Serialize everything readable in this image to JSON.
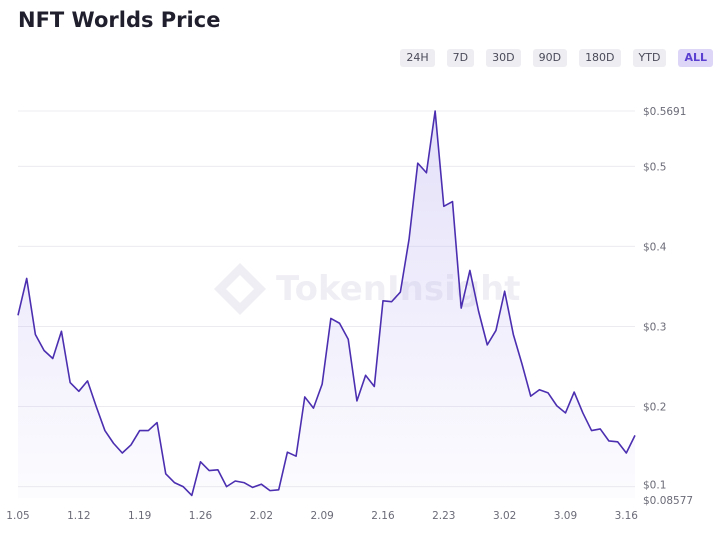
{
  "title": "NFT Worlds Price",
  "range_tabs": [
    {
      "label": "24H",
      "active": false
    },
    {
      "label": "7D",
      "active": false
    },
    {
      "label": "30D",
      "active": false
    },
    {
      "label": "90D",
      "active": false
    },
    {
      "label": "180D",
      "active": false
    },
    {
      "label": "YTD",
      "active": false
    },
    {
      "label": "ALL",
      "active": true
    }
  ],
  "watermark": "TokenInsight",
  "colors": {
    "line": "#4b2fb0",
    "fill": "#b8aef0",
    "grid": "#ececf0",
    "axis_text": "#6b6b78",
    "active_tab": "#ddd6f7"
  },
  "chart_data": {
    "type": "area",
    "title": "NFT Worlds Price",
    "xlabel": "",
    "ylabel": "",
    "x_tick_labels": [
      "1.05",
      "1.12",
      "1.19",
      "1.26",
      "2.02",
      "2.09",
      "2.16",
      "2.23",
      "3.02",
      "3.09",
      "3.16"
    ],
    "y_ticks": [
      {
        "value": 0.5691,
        "label": "$0.5691"
      },
      {
        "value": 0.5,
        "label": "$0.5"
      },
      {
        "value": 0.4,
        "label": "$0.4"
      },
      {
        "value": 0.3,
        "label": "$0.3"
      },
      {
        "value": 0.2,
        "label": "$0.2"
      },
      {
        "value": 0.1,
        "label": "$0.1"
      },
      {
        "value": 0.08577,
        "label": "$0.08577"
      }
    ],
    "ylim": [
      0.08577,
      0.5691
    ],
    "grid": true,
    "legend": "none",
    "series": [
      {
        "values": [
          0.314,
          0.36,
          0.29,
          0.27,
          0.26,
          0.294,
          0.23,
          0.219,
          0.232,
          0.2,
          0.17,
          0.154,
          0.142,
          0.152,
          0.17,
          0.17,
          0.18,
          0.116,
          0.105,
          0.1,
          0.089,
          0.131,
          0.12,
          0.121,
          0.1,
          0.107,
          0.105,
          0.099,
          0.103,
          0.095,
          0.096,
          0.143,
          0.138,
          0.212,
          0.198,
          0.228,
          0.31,
          0.304,
          0.284,
          0.207,
          0.239,
          0.225,
          0.332,
          0.331,
          0.343,
          0.409,
          0.504,
          0.492,
          0.569,
          0.45,
          0.456,
          0.323,
          0.37,
          0.319,
          0.277,
          0.295,
          0.344,
          0.29,
          0.253,
          0.213,
          0.221,
          0.217,
          0.201,
          0.192,
          0.218,
          0.192,
          0.17,
          0.172,
          0.157,
          0.156,
          0.142,
          0.164
        ]
      }
    ]
  }
}
